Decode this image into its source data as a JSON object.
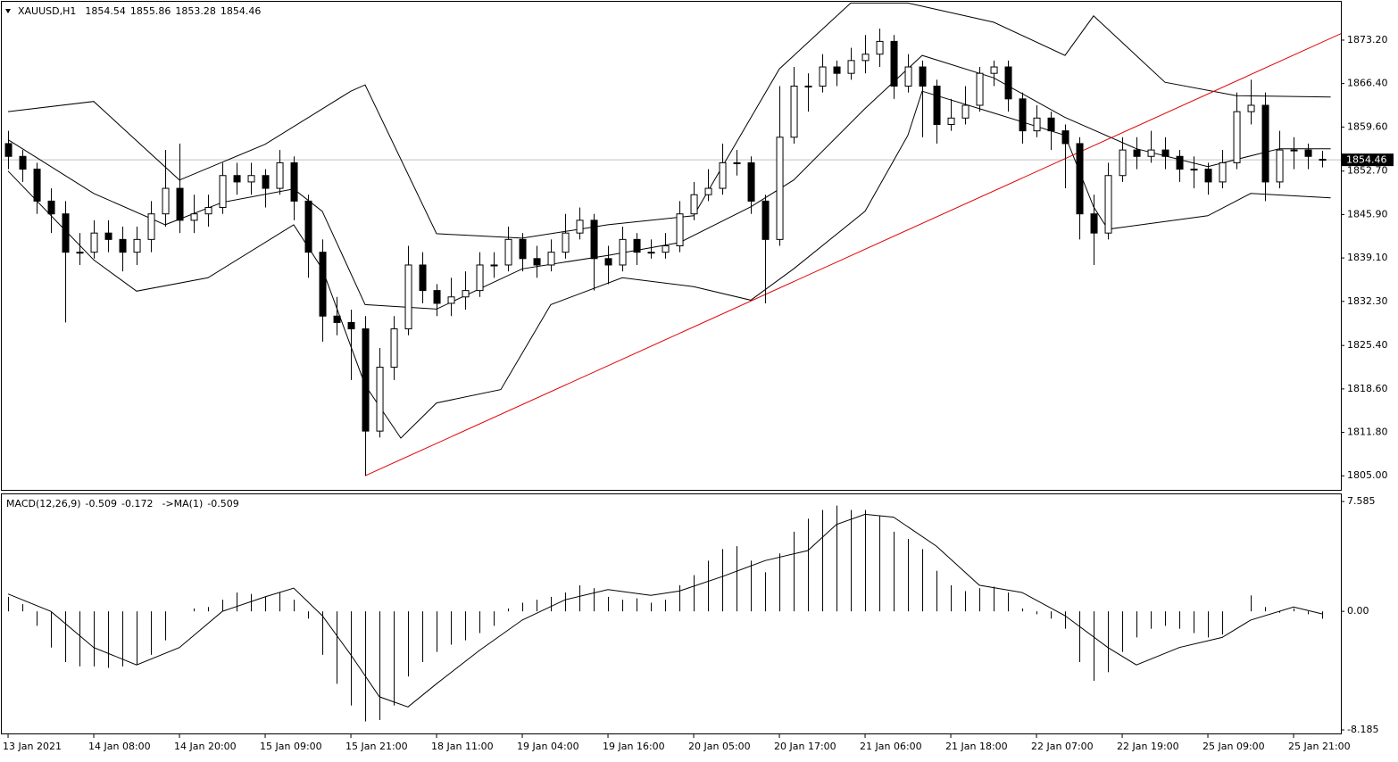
{
  "chart_data": {
    "type": "candlestick",
    "symbol": "XAUUSD,H1",
    "xlim": [
      -0.44,
      93.31
    ],
    "xticks": [
      {
        "value": 0,
        "label": "13 Jan 2021"
      },
      {
        "value": 6,
        "label": "14 Jan 08:00"
      },
      {
        "value": 12,
        "label": "14 Jan 20:00"
      },
      {
        "value": 18,
        "label": "15 Jan 09:00"
      },
      {
        "value": 24,
        "label": "15 Jan 21:00"
      },
      {
        "value": 30,
        "label": "18 Jan 11:00"
      },
      {
        "value": 36,
        "label": "19 Jan 04:00"
      },
      {
        "value": 42,
        "label": "19 Jan 16:00"
      },
      {
        "value": 48,
        "label": "20 Jan 05:00"
      },
      {
        "value": 54,
        "label": "20 Jan 17:00"
      },
      {
        "value": 60,
        "label": "21 Jan 06:00"
      },
      {
        "value": 66,
        "label": "21 Jan 18:00"
      },
      {
        "value": 72,
        "label": "22 Jan 07:00"
      },
      {
        "value": 78,
        "label": "22 Jan 19:00"
      },
      {
        "value": 84,
        "label": "25 Jan 09:00"
      },
      {
        "value": 90,
        "label": "25 Jan 21:00"
      }
    ],
    "ylim": [
      1802.8,
      1879.2
    ],
    "yticks": [
      {
        "value": 1873.2,
        "label": "1873.20"
      },
      {
        "value": 1866.4,
        "label": "1866.40"
      },
      {
        "value": 1859.6,
        "label": "1859.60"
      },
      {
        "value": 1852.7,
        "label": "1852.70"
      },
      {
        "value": 1845.9,
        "label": "1845.90"
      },
      {
        "value": 1839.1,
        "label": "1839.10"
      },
      {
        "value": 1832.3,
        "label": "1832.30"
      },
      {
        "value": 1825.4,
        "label": "1825.40"
      },
      {
        "value": 1818.6,
        "label": "1818.60"
      },
      {
        "value": 1811.8,
        "label": "1811.80"
      },
      {
        "value": 1805,
        "label": "1805.00"
      }
    ],
    "candles": [
      [
        1857,
        1859,
        1853,
        1855
      ],
      [
        1855,
        1856,
        1851,
        1853
      ],
      [
        1853,
        1854,
        1846,
        1848
      ],
      [
        1848,
        1850,
        1843,
        1846
      ],
      [
        1846,
        1848,
        1829,
        1840
      ],
      [
        1840,
        1843,
        1838,
        1840
      ],
      [
        1840,
        1845,
        1839,
        1843
      ],
      [
        1843,
        1845,
        1840,
        1842
      ],
      [
        1842,
        1844,
        1837,
        1840
      ],
      [
        1840,
        1844,
        1838,
        1842
      ],
      [
        1842,
        1848,
        1840,
        1846
      ],
      [
        1846,
        1856,
        1844,
        1850
      ],
      [
        1850,
        1857,
        1843,
        1845
      ],
      [
        1845,
        1849,
        1843,
        1846
      ],
      [
        1846,
        1849,
        1844,
        1847
      ],
      [
        1847,
        1854,
        1846,
        1852
      ],
      [
        1852,
        1854,
        1849,
        1851
      ],
      [
        1851,
        1854,
        1849,
        1852
      ],
      [
        1852,
        1853,
        1847,
        1850
      ],
      [
        1850,
        1856,
        1849,
        1854
      ],
      [
        1854,
        1855,
        1845,
        1848
      ],
      [
        1848,
        1849,
        1836,
        1840
      ],
      [
        1840,
        1842,
        1826,
        1830
      ],
      [
        1830,
        1833,
        1827,
        1829
      ],
      [
        1829,
        1831,
        1820,
        1828
      ],
      [
        1828,
        1830,
        1805,
        1812
      ],
      [
        1812,
        1825,
        1811,
        1822
      ],
      [
        1822,
        1830,
        1820,
        1828
      ],
      [
        1828,
        1841,
        1827,
        1838
      ],
      [
        1838,
        1840,
        1832,
        1834
      ],
      [
        1834,
        1835,
        1830,
        1832
      ],
      [
        1832,
        1836,
        1830,
        1833
      ],
      [
        1833,
        1837,
        1831,
        1834
      ],
      [
        1834,
        1840,
        1833,
        1838
      ],
      [
        1838,
        1840,
        1836,
        1838
      ],
      [
        1838,
        1844,
        1837,
        1842
      ],
      [
        1842,
        1843,
        1837,
        1839
      ],
      [
        1839,
        1841,
        1836,
        1838
      ],
      [
        1838,
        1842,
        1837,
        1840
      ],
      [
        1840,
        1846,
        1839,
        1843
      ],
      [
        1843,
        1847,
        1842,
        1845
      ],
      [
        1845,
        1846,
        1834,
        1839
      ],
      [
        1839,
        1841,
        1835,
        1838
      ],
      [
        1838,
        1844,
        1837,
        1842
      ],
      [
        1842,
        1843,
        1838,
        1840
      ],
      [
        1840,
        1842,
        1839,
        1840
      ],
      [
        1840,
        1843,
        1839,
        1841
      ],
      [
        1841,
        1848,
        1840,
        1846
      ],
      [
        1846,
        1851,
        1845,
        1849
      ],
      [
        1849,
        1853,
        1848,
        1850
      ],
      [
        1850,
        1857,
        1849,
        1854
      ],
      [
        1854,
        1856,
        1852,
        1854
      ],
      [
        1854,
        1855,
        1846,
        1848
      ],
      [
        1848,
        1849,
        1832,
        1842
      ],
      [
        1842,
        1866,
        1841,
        1858
      ],
      [
        1858,
        1869,
        1857,
        1866
      ],
      [
        1866,
        1868,
        1862,
        1866
      ],
      [
        1866,
        1871,
        1865,
        1869
      ],
      [
        1869,
        1870,
        1866,
        1868
      ],
      [
        1868,
        1872,
        1867,
        1870
      ],
      [
        1870,
        1874,
        1868,
        1871
      ],
      [
        1871,
        1875,
        1869,
        1873
      ],
      [
        1873,
        1874,
        1864,
        1866
      ],
      [
        1866,
        1871,
        1865,
        1869
      ],
      [
        1869,
        1870,
        1858,
        1866
      ],
      [
        1866,
        1867,
        1857,
        1860
      ],
      [
        1860,
        1864,
        1859,
        1861
      ],
      [
        1861,
        1866,
        1860,
        1863
      ],
      [
        1863,
        1869,
        1862,
        1868
      ],
      [
        1868,
        1870,
        1866,
        1869
      ],
      [
        1869,
        1870,
        1862,
        1864
      ],
      [
        1864,
        1865,
        1857,
        1859
      ],
      [
        1859,
        1863,
        1858,
        1861
      ],
      [
        1861,
        1862,
        1856,
        1859
      ],
      [
        1859,
        1860,
        1850,
        1857
      ],
      [
        1857,
        1858,
        1842,
        1846
      ],
      [
        1846,
        1849,
        1838,
        1843
      ],
      [
        1843,
        1854,
        1842,
        1852
      ],
      [
        1852,
        1858,
        1851,
        1856
      ],
      [
        1856,
        1858,
        1853,
        1855
      ],
      [
        1855,
        1859,
        1854,
        1856
      ],
      [
        1856,
        1858,
        1853,
        1855
      ],
      [
        1855,
        1856,
        1851,
        1853
      ],
      [
        1853,
        1855,
        1850,
        1853
      ],
      [
        1853,
        1854,
        1849,
        1851
      ],
      [
        1851,
        1856,
        1850,
        1854
      ],
      [
        1854,
        1865,
        1853,
        1862
      ],
      [
        1862,
        1867,
        1860,
        1863
      ],
      [
        1863,
        1865,
        1848,
        1851
      ],
      [
        1851,
        1859,
        1850,
        1856
      ],
      [
        1856,
        1858,
        1853,
        1856
      ],
      [
        1856,
        1857,
        1853,
        1855
      ],
      [
        1854.54,
        1855.86,
        1853.28,
        1854.46
      ]
    ],
    "bands": [
      {
        "color": "#000000",
        "x": [
          0,
          6,
          12,
          18,
          24,
          25,
          30,
          36,
          42,
          48,
          54,
          59,
          63,
          69,
          74,
          76,
          81,
          86,
          92.6
        ],
        "values": [
          1862,
          1863.6,
          1851.3,
          1856.9,
          1865.2,
          1866.2,
          1842.9,
          1842.2,
          1844.3,
          1845.7,
          1868.7,
          1879,
          1879,
          1876,
          1870.8,
          1877,
          1866.6,
          1864.5,
          1864.3
        ]
      },
      {
        "color": "#000000",
        "x": [
          0,
          6,
          11,
          15,
          20,
          22,
          25,
          30,
          36,
          42,
          47,
          52,
          55,
          60,
          64,
          69,
          74,
          79,
          84,
          89,
          92.6
        ],
        "values": [
          1857.6,
          1849.2,
          1844.3,
          1847.8,
          1849.9,
          1846.4,
          1831.8,
          1831.1,
          1837.4,
          1839.5,
          1841.5,
          1847.1,
          1851.3,
          1862.5,
          1870.8,
          1867.3,
          1861.1,
          1856.2,
          1853.4,
          1856.2,
          1856.2
        ]
      },
      {
        "color": "#000000",
        "x": [
          0,
          6,
          9,
          14,
          20,
          22,
          25,
          27.5,
          30,
          34.5,
          38,
          43,
          48,
          52,
          55,
          60,
          63,
          64,
          69,
          74,
          76,
          77,
          84,
          87,
          92.6
        ],
        "values": [
          1852.7,
          1838.8,
          1833.9,
          1836,
          1844.3,
          1837.4,
          1819.2,
          1810.9,
          1816.4,
          1818.5,
          1831.8,
          1836,
          1834.6,
          1832.5,
          1837.4,
          1846.4,
          1858.3,
          1865.2,
          1861.8,
          1858.3,
          1847.1,
          1843.6,
          1845.7,
          1849.2,
          1848.5
        ]
      }
    ],
    "trendline": {
      "color": "#e00000",
      "x": [
        25,
        93.5
      ],
      "values": [
        1805,
        1874.4
      ]
    },
    "macd": {
      "label": "MACD(12,26,9)",
      "color": "#000000",
      "ylim": [
        -8.43,
        8.08
      ],
      "yticks": [
        7.585,
        {
          "value": 0,
          "label": "0.00"
        },
        -8.185
      ],
      "values": [
        1.0,
        0.5,
        -1,
        -2.5,
        -3.5,
        -3.8,
        -3.8,
        -3.9,
        -3.8,
        -3.7,
        -3.0,
        -2.0,
        0.0,
        0.2,
        0.3,
        0.8,
        1.3,
        1.2,
        1.0,
        1.3,
        0.8,
        -0.5,
        -3.0,
        -5.0,
        -6.5,
        -7.6,
        -7.5,
        -6.5,
        -4.5,
        -3.5,
        -2.8,
        -2.3,
        -2.0,
        -1.5,
        -1.0,
        0.2,
        0.6,
        0.8,
        1.0,
        1.3,
        1.8,
        1.6,
        1.0,
        0.8,
        0.9,
        0.6,
        0.8,
        1.8,
        2.5,
        3.5,
        4.3,
        4.5,
        3.5,
        2.7,
        4.0,
        5.5,
        6.4,
        7.0,
        7.3,
        7.0,
        7.0,
        6.6,
        5.5,
        5.0,
        4.3,
        2.8,
        1.8,
        1.4,
        1.6,
        1.7,
        1.3,
        0.2,
        -0.2,
        -0.5,
        -1.2,
        -3.5,
        -4.8,
        -4.2,
        -2.8,
        -1.8,
        -1.2,
        -1.0,
        -1.2,
        -1.5,
        -1.8,
        -1.6,
        0.0,
        1.1,
        0.3,
        -0.1,
        0.2,
        -0.2,
        -0.509
      ],
      "signal": {
        "label": "->MA(1)",
        "x": [
          0,
          3,
          6,
          9,
          12,
          15,
          18,
          20,
          22,
          24,
          26,
          28,
          30,
          33,
          36,
          39,
          42,
          45,
          47,
          50,
          53,
          56,
          58,
          60,
          62,
          65,
          68,
          71,
          74,
          77,
          79,
          82,
          85,
          87,
          90,
          92
        ],
        "values": [
          1.2,
          0.0,
          -2.5,
          -3.7,
          -2.5,
          0.0,
          1.0,
          1.6,
          -0.3,
          -3.0,
          -5.9,
          -6.6,
          -5.0,
          -2.7,
          -0.6,
          0.8,
          1.5,
          1.1,
          1.4,
          2.4,
          3.5,
          4.2,
          6.0,
          6.7,
          6.5,
          4.5,
          1.8,
          1.3,
          -0.3,
          -2.5,
          -3.7,
          -2.5,
          -1.8,
          -0.6,
          0.3,
          -0.172
        ]
      }
    }
  }
}
